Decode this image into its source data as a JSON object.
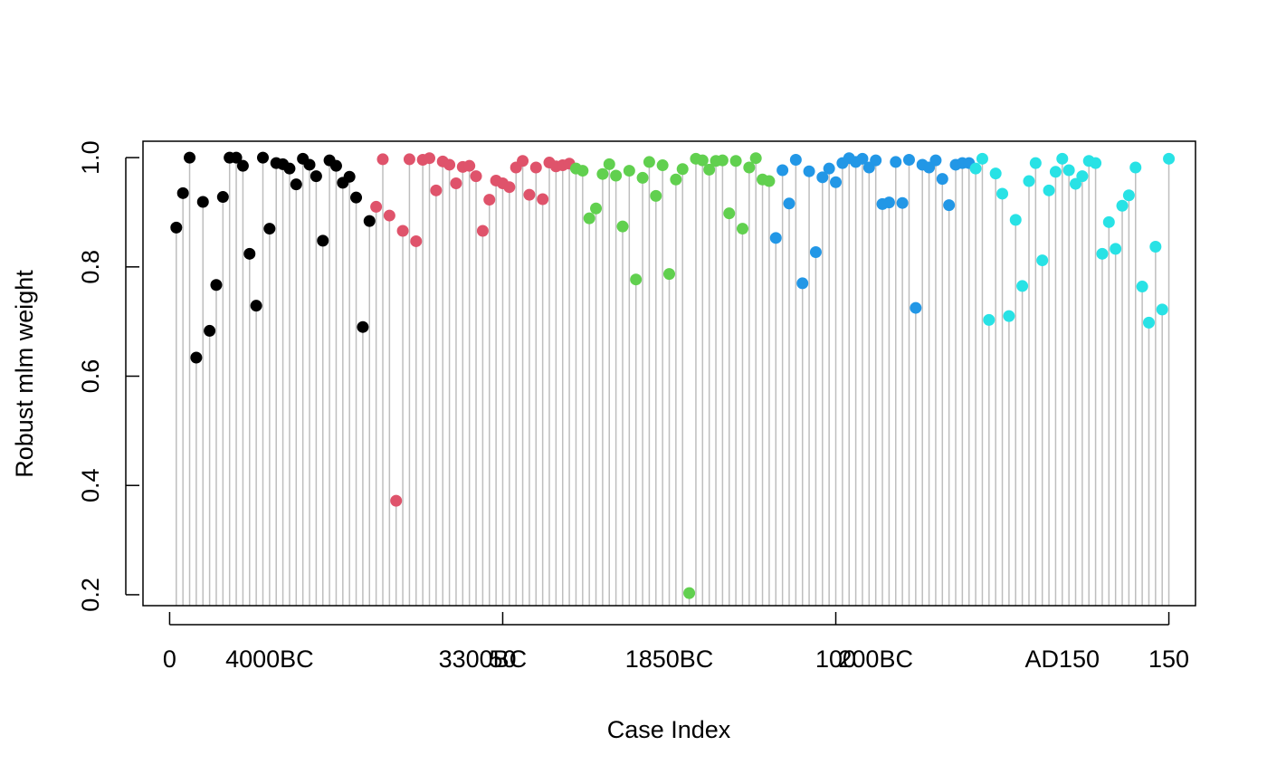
{
  "chart_data": {
    "type": "scatter",
    "subtype": "lollipop",
    "xlabel": "Case Index",
    "ylabel": "Robust mlm weight",
    "xlim": [
      -4,
      154
    ],
    "ylim": [
      0.18,
      1.03
    ],
    "grid": false,
    "legend": "none",
    "x_ticks": [
      0,
      50,
      100,
      150
    ],
    "y_ticks": [
      0.2,
      0.4,
      0.6,
      0.8,
      1.0
    ],
    "y_tick_labels": [
      "0.2",
      "0.4",
      "0.6",
      "0.8",
      "1.0"
    ],
    "x_tick_labels": [
      {
        "x": 0,
        "label": "0"
      },
      {
        "x": 50,
        "label": "50"
      },
      {
        "x": 100,
        "label": "100"
      },
      {
        "x": 150,
        "label": "150"
      }
    ],
    "group_labels": [
      {
        "x": 15,
        "label": "4000BC"
      },
      {
        "x": 47,
        "label": "3300BC"
      },
      {
        "x": 75,
        "label": "1850BC"
      },
      {
        "x": 106,
        "label": "200BC"
      },
      {
        "x": 134,
        "label": "AD150"
      }
    ],
    "colors": {
      "stem": "#bebebe",
      "axis": "#000000",
      "groups": [
        "#000000",
        "#df536b",
        "#61d04f",
        "#2297e6",
        "#28e2e5"
      ]
    },
    "series": [
      {
        "group": 0,
        "points": [
          [
            1,
            0.872
          ],
          [
            2,
            0.935
          ],
          [
            3,
            1.0
          ],
          [
            4,
            0.634
          ],
          [
            5,
            0.919
          ],
          [
            6,
            0.683
          ],
          [
            7,
            0.767
          ],
          [
            8,
            0.928
          ],
          [
            9,
            1.0
          ],
          [
            10,
            1.0
          ],
          [
            11,
            0.985
          ],
          [
            12,
            0.824
          ],
          [
            13,
            0.729
          ],
          [
            14,
            1.0
          ],
          [
            15,
            0.87
          ],
          [
            16,
            0.99
          ],
          [
            17,
            0.988
          ],
          [
            18,
            0.98
          ],
          [
            19,
            0.951
          ],
          [
            20,
            0.998
          ],
          [
            21,
            0.987
          ],
          [
            22,
            0.966
          ],
          [
            23,
            0.848
          ],
          [
            24,
            0.995
          ],
          [
            25,
            0.985
          ],
          [
            26,
            0.954
          ],
          [
            27,
            0.965
          ],
          [
            28,
            0.927
          ],
          [
            29,
            0.69
          ],
          [
            30,
            0.884
          ]
        ]
      },
      {
        "group": 1,
        "points": [
          [
            31,
            0.91
          ],
          [
            32,
            0.997
          ],
          [
            33,
            0.894
          ],
          [
            34,
            0.372
          ],
          [
            35,
            0.866
          ],
          [
            36,
            0.997
          ],
          [
            37,
            0.847
          ],
          [
            38,
            0.996
          ],
          [
            39,
            0.999
          ],
          [
            40,
            0.94
          ],
          [
            41,
            0.993
          ],
          [
            42,
            0.987
          ],
          [
            43,
            0.953
          ],
          [
            44,
            0.983
          ],
          [
            45,
            0.985
          ],
          [
            46,
            0.966
          ],
          [
            47,
            0.866
          ],
          [
            48,
            0.923
          ],
          [
            49,
            0.958
          ],
          [
            50,
            0.953
          ],
          [
            51,
            0.946
          ],
          [
            52,
            0.982
          ],
          [
            53,
            0.994
          ],
          [
            54,
            0.932
          ],
          [
            55,
            0.982
          ],
          [
            56,
            0.924
          ],
          [
            57,
            0.991
          ],
          [
            58,
            0.984
          ],
          [
            59,
            0.986
          ],
          [
            60,
            0.989
          ]
        ]
      },
      {
        "group": 2,
        "points": [
          [
            61,
            0.98
          ],
          [
            62,
            0.976
          ],
          [
            63,
            0.889
          ],
          [
            64,
            0.907
          ],
          [
            65,
            0.97
          ],
          [
            66,
            0.988
          ],
          [
            67,
            0.967
          ],
          [
            68,
            0.874
          ],
          [
            69,
            0.976
          ],
          [
            70,
            0.777
          ],
          [
            71,
            0.963
          ],
          [
            72,
            0.992
          ],
          [
            73,
            0.93
          ],
          [
            74,
            0.986
          ],
          [
            75,
            0.787
          ],
          [
            76,
            0.96
          ],
          [
            77,
            0.979
          ],
          [
            78,
            0.203
          ],
          [
            79,
            0.998
          ],
          [
            80,
            0.995
          ],
          [
            81,
            0.978
          ],
          [
            82,
            0.994
          ],
          [
            83,
            0.995
          ],
          [
            84,
            0.898
          ],
          [
            85,
            0.994
          ],
          [
            86,
            0.87
          ],
          [
            87,
            0.982
          ],
          [
            88,
            0.999
          ],
          [
            89,
            0.96
          ],
          [
            90,
            0.957
          ]
        ]
      },
      {
        "group": 3,
        "points": [
          [
            91,
            0.853
          ],
          [
            92,
            0.977
          ],
          [
            93,
            0.916
          ],
          [
            94,
            0.996
          ],
          [
            95,
            0.77
          ],
          [
            96,
            0.975
          ],
          [
            97,
            0.827
          ],
          [
            98,
            0.964
          ],
          [
            99,
            0.98
          ],
          [
            100,
            0.955
          ],
          [
            101,
            0.99
          ],
          [
            102,
            0.999
          ],
          [
            103,
            0.992
          ],
          [
            104,
            0.998
          ],
          [
            105,
            0.982
          ],
          [
            106,
            0.995
          ],
          [
            107,
            0.915
          ],
          [
            108,
            0.918
          ],
          [
            109,
            0.992
          ],
          [
            110,
            0.917
          ],
          [
            111,
            0.996
          ],
          [
            112,
            0.725
          ],
          [
            113,
            0.987
          ],
          [
            114,
            0.982
          ],
          [
            115,
            0.995
          ],
          [
            116,
            0.961
          ],
          [
            117,
            0.913
          ],
          [
            118,
            0.987
          ],
          [
            119,
            0.99
          ],
          [
            120,
            0.99
          ]
        ]
      },
      {
        "group": 4,
        "points": [
          [
            121,
            0.98
          ],
          [
            122,
            0.998
          ],
          [
            123,
            0.703
          ],
          [
            124,
            0.971
          ],
          [
            125,
            0.934
          ],
          [
            126,
            0.71
          ],
          [
            127,
            0.886
          ],
          [
            128,
            0.765
          ],
          [
            129,
            0.957
          ],
          [
            130,
            0.99
          ],
          [
            131,
            0.812
          ],
          [
            132,
            0.94
          ],
          [
            133,
            0.974
          ],
          [
            134,
            0.998
          ],
          [
            135,
            0.977
          ],
          [
            136,
            0.952
          ],
          [
            137,
            0.966
          ],
          [
            138,
            0.994
          ],
          [
            139,
            0.99
          ],
          [
            140,
            0.824
          ],
          [
            141,
            0.882
          ],
          [
            142,
            0.833
          ],
          [
            143,
            0.912
          ],
          [
            144,
            0.931
          ],
          [
            145,
            0.982
          ],
          [
            146,
            0.764
          ],
          [
            147,
            0.698
          ],
          [
            148,
            0.837
          ],
          [
            149,
            0.722
          ],
          [
            150,
            0.998
          ]
        ]
      }
    ]
  }
}
